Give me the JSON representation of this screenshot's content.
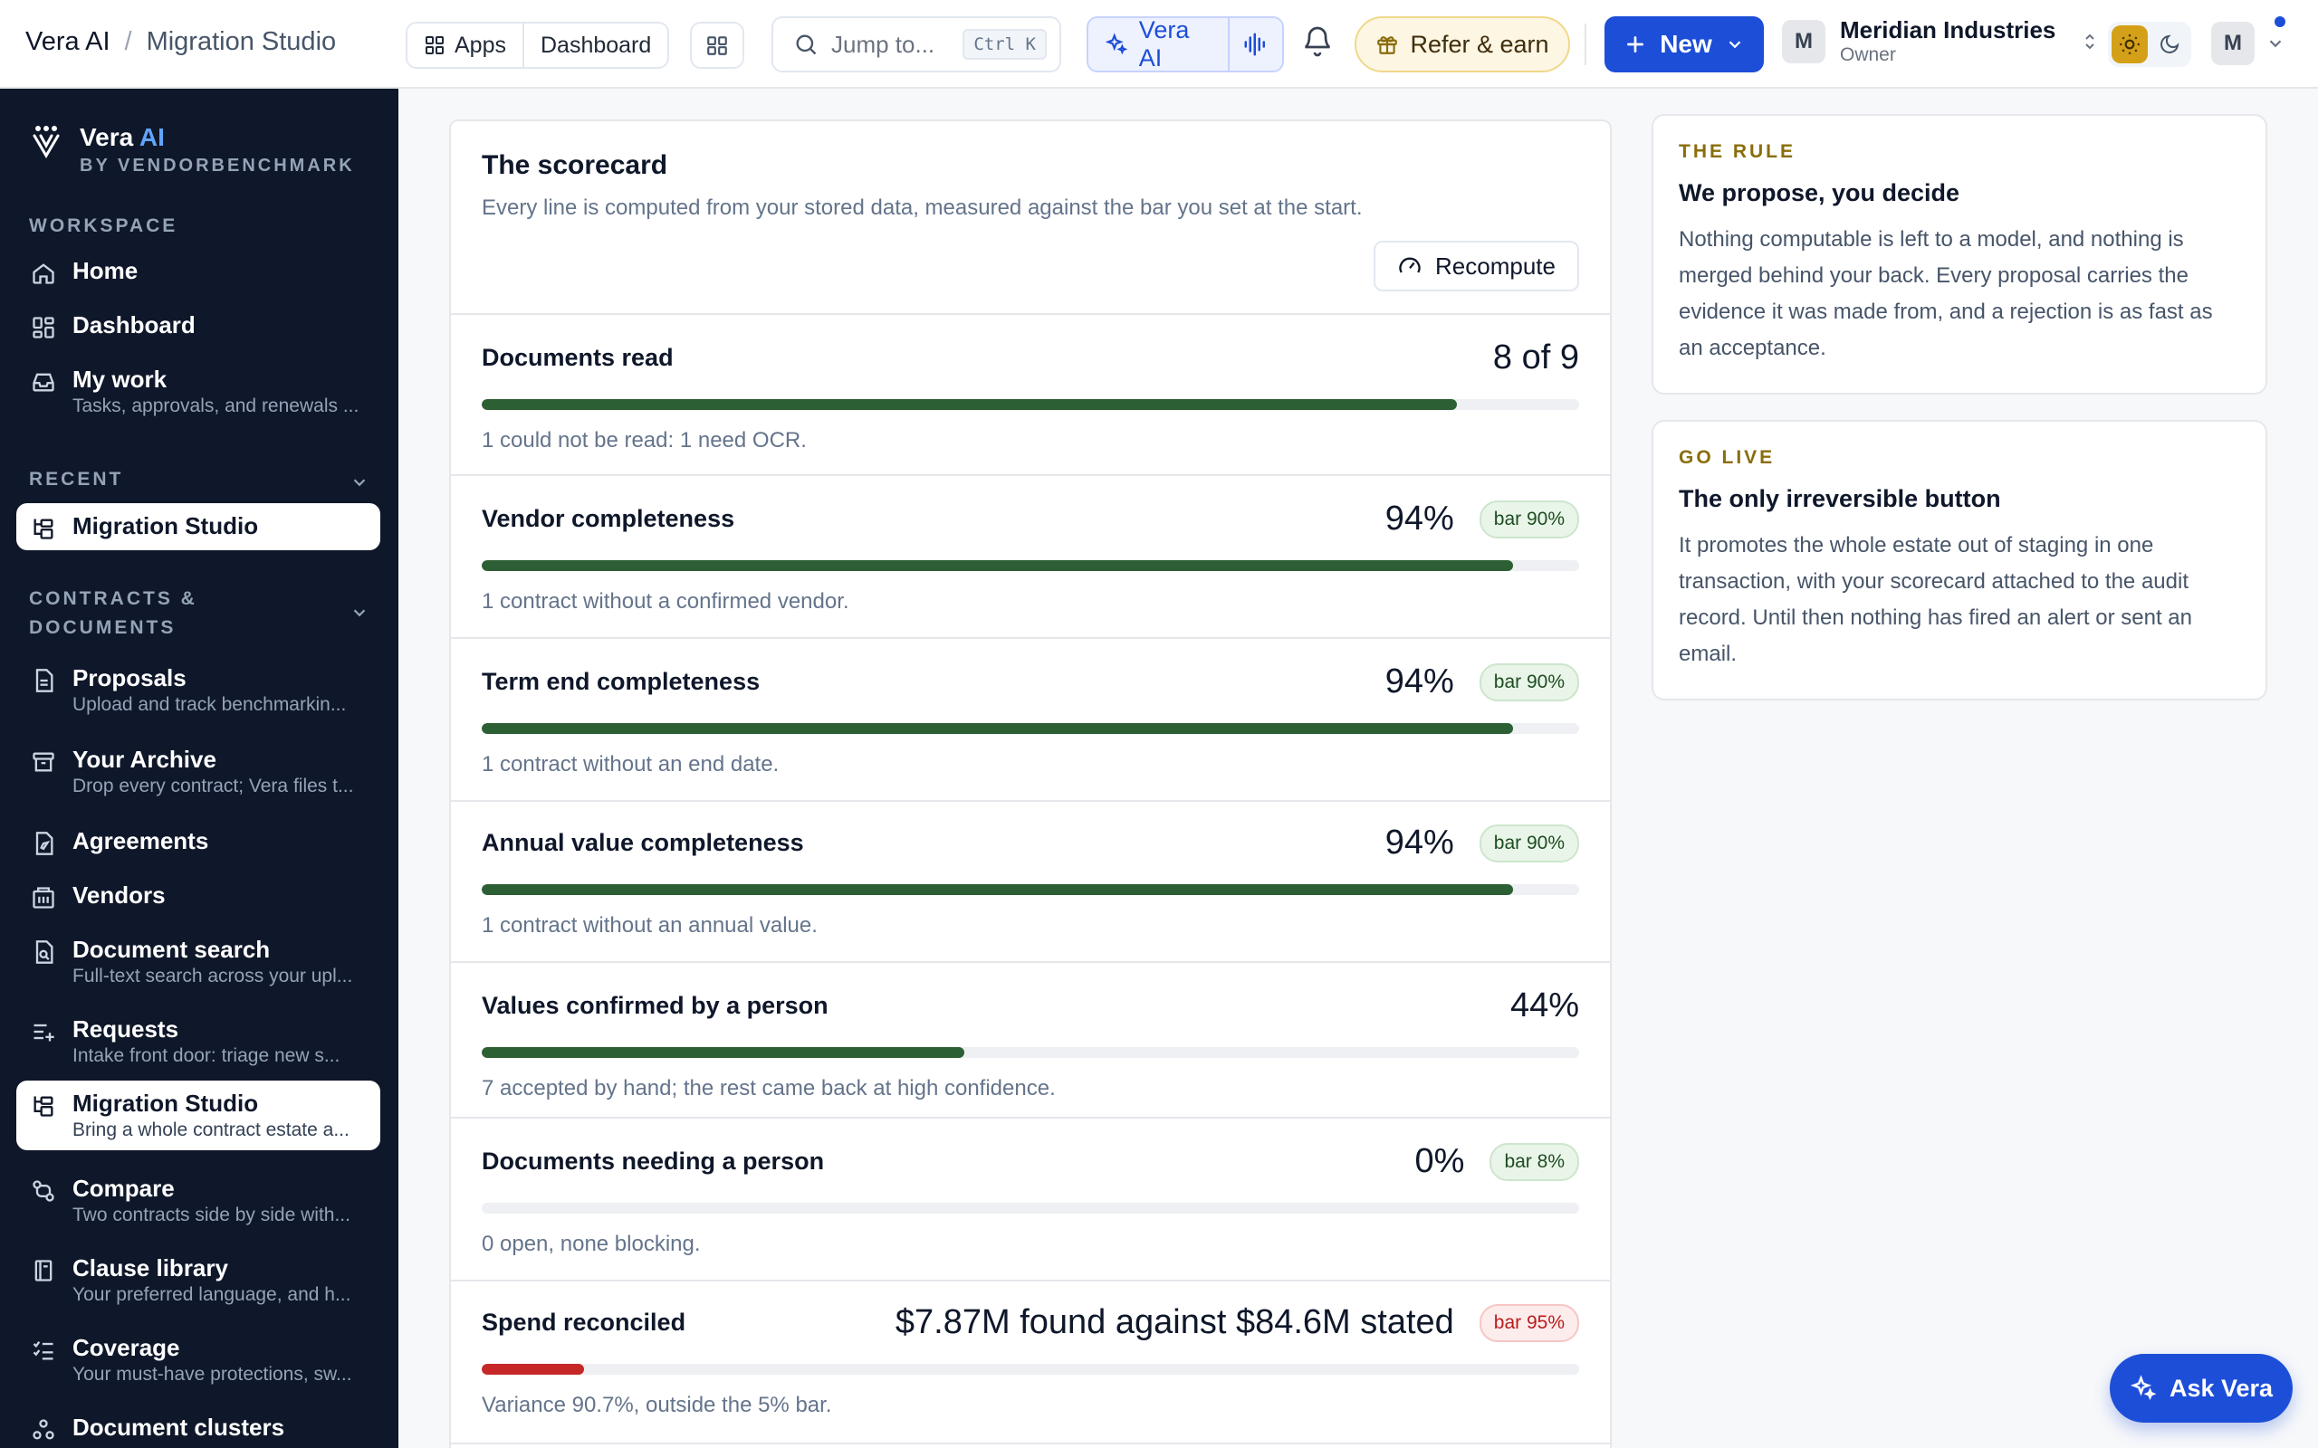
{
  "breadcrumb": {
    "app": "Vera AI",
    "separator": "/",
    "page": "Migration Studio"
  },
  "topbar": {
    "apps_label": "Apps",
    "dashboard_label": "Dashboard",
    "search_placeholder": "Jump to...",
    "search_shortcut": "Ctrl K",
    "vera_label": "Vera AI",
    "refer_label": "Refer & earn",
    "new_label": "New",
    "org_initial": "M",
    "org_name": "Meridian Industries",
    "org_role": "Owner",
    "user_initial": "M",
    "accent_color": "#1d4ed8"
  },
  "sidebar": {
    "brand_name": "Vera",
    "brand_ai": "AI",
    "brand_sub": "BY VENDORBENCHMARK",
    "sections": {
      "workspace": "WORKSPACE",
      "recent": "RECENT",
      "contracts": "CONTRACTS &",
      "contracts2": "DOCUMENTS"
    },
    "workspace_items": [
      {
        "label": "Home",
        "icon": "home-icon"
      },
      {
        "label": "Dashboard",
        "icon": "dashboard-icon"
      },
      {
        "label": "My work",
        "desc": "Tasks, approvals, and renewals ...",
        "icon": "inbox-icon"
      }
    ],
    "recent_items": [
      {
        "label": "Migration Studio",
        "icon": "migration-icon"
      }
    ],
    "contract_items": [
      {
        "label": "Proposals",
        "desc": "Upload and track benchmarkin...",
        "icon": "document-icon"
      },
      {
        "label": "Your Archive",
        "desc": "Drop every contract; Vera files t...",
        "icon": "archive-icon"
      },
      {
        "label": "Agreements",
        "icon": "agreement-icon"
      },
      {
        "label": "Vendors",
        "icon": "building-icon"
      },
      {
        "label": "Document search",
        "desc": "Full-text search across your upl...",
        "icon": "file-search-icon"
      },
      {
        "label": "Requests",
        "desc": "Intake front door: triage new s...",
        "icon": "list-plus-icon"
      },
      {
        "label": "Migration Studio",
        "desc": "Bring a whole contract estate a...",
        "icon": "migration-icon"
      },
      {
        "label": "Compare",
        "desc": "Two contracts side by side with...",
        "icon": "compare-icon"
      },
      {
        "label": "Clause library",
        "desc": "Your preferred language, and h...",
        "icon": "book-icon"
      },
      {
        "label": "Coverage",
        "desc": "Your must-have protections, sw...",
        "icon": "checklist-icon"
      },
      {
        "label": "Document clusters",
        "icon": "cluster-icon"
      }
    ]
  },
  "scorecard": {
    "title": "The scorecard",
    "subtitle": "Every line is computed from your stored data, measured against the bar you set at the start.",
    "recompute_label": "Recompute",
    "metrics": [
      {
        "label": "Documents read",
        "value": "8 of 9",
        "badge": "",
        "fill": 0.889,
        "color": "#2d5f34",
        "note": "1 could not be read: 1 need OCR."
      },
      {
        "label": "Vendor completeness",
        "value": "94%",
        "badge": "bar 90%",
        "fill": 0.94,
        "color": "#2d5f34",
        "note": "1 contract without a confirmed vendor."
      },
      {
        "label": "Term end completeness",
        "value": "94%",
        "badge": "bar 90%",
        "fill": 0.94,
        "color": "#2d5f34",
        "note": "1 contract without an end date."
      },
      {
        "label": "Annual value completeness",
        "value": "94%",
        "badge": "bar 90%",
        "fill": 0.94,
        "color": "#2d5f34",
        "note": "1 contract without an annual value."
      },
      {
        "label": "Values confirmed by a person",
        "value": "44%",
        "badge": "",
        "fill": 0.44,
        "color": "#2d5f34",
        "note": "7 accepted by hand; the rest came back at high confidence."
      },
      {
        "label": "Documents needing a person",
        "value": "0%",
        "badge": "bar 8%",
        "fill": 0,
        "color": "#2d5f34",
        "note": "0 open, none blocking."
      },
      {
        "label": "Spend reconciled",
        "value": "$7.87M found against $84.6M stated",
        "badge": "bar 95%",
        "badge_bad": true,
        "fill": 0.093,
        "color": "#c62828",
        "note": "Variance 90.7%, outside the 5% bar."
      }
    ]
  },
  "panels": {
    "rule": {
      "kicker": "THE RULE",
      "title": "We propose, you decide",
      "body": "Nothing computable is left to a model, and nothing is merged behind your back. Every proposal carries the evidence it was made from, and a rejection is as fast as an acceptance."
    },
    "golive": {
      "kicker": "GO LIVE",
      "title": "The only irreversible button",
      "body": "It promotes the whole estate out of staging in one transaction, with your scorecard attached to the audit record. Until then nothing has fired an alert or sent an email."
    }
  },
  "ask_label": "Ask Vera"
}
